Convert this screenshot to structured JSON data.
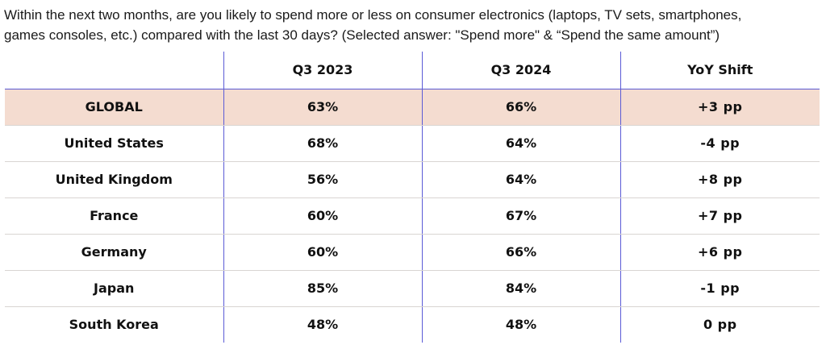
{
  "question": {
    "line1": "Within the next two months, are you likely to spend more or less on consumer electronics (laptops, TV sets, smartphones,",
    "line2": "games consoles, etc.) compared with the last 30 days?  (Selected answer: \"Spend more\" & “Spend the same amount”)"
  },
  "table": {
    "headers": [
      "",
      "Q3 2023",
      "Q3 2024",
      "YoY Shift"
    ],
    "rows": [
      {
        "region": "GLOBAL",
        "q3_2023": "63%",
        "q3_2024": "66%",
        "shift": "+3 pp"
      },
      {
        "region": "United States",
        "q3_2023": "68%",
        "q3_2024": "64%",
        "shift": "-4 pp"
      },
      {
        "region": "United Kingdom",
        "q3_2023": "56%",
        "q3_2024": "64%",
        "shift": "+8 pp"
      },
      {
        "region": "France",
        "q3_2023": "60%",
        "q3_2024": "67%",
        "shift": "+7 pp"
      },
      {
        "region": "Germany",
        "q3_2023": "60%",
        "q3_2024": "66%",
        "shift": "+6 pp"
      },
      {
        "region": "Japan",
        "q3_2023": "85%",
        "q3_2024": "84%",
        "shift": "-1 pp"
      },
      {
        "region": "South Korea",
        "q3_2023": "48%",
        "q3_2024": "48%",
        "shift": "0 pp"
      }
    ]
  },
  "colors": {
    "grid_line": "#5b5bd6",
    "highlight_row": "#f4dcd0",
    "row_divider": "#d9d5d2"
  }
}
